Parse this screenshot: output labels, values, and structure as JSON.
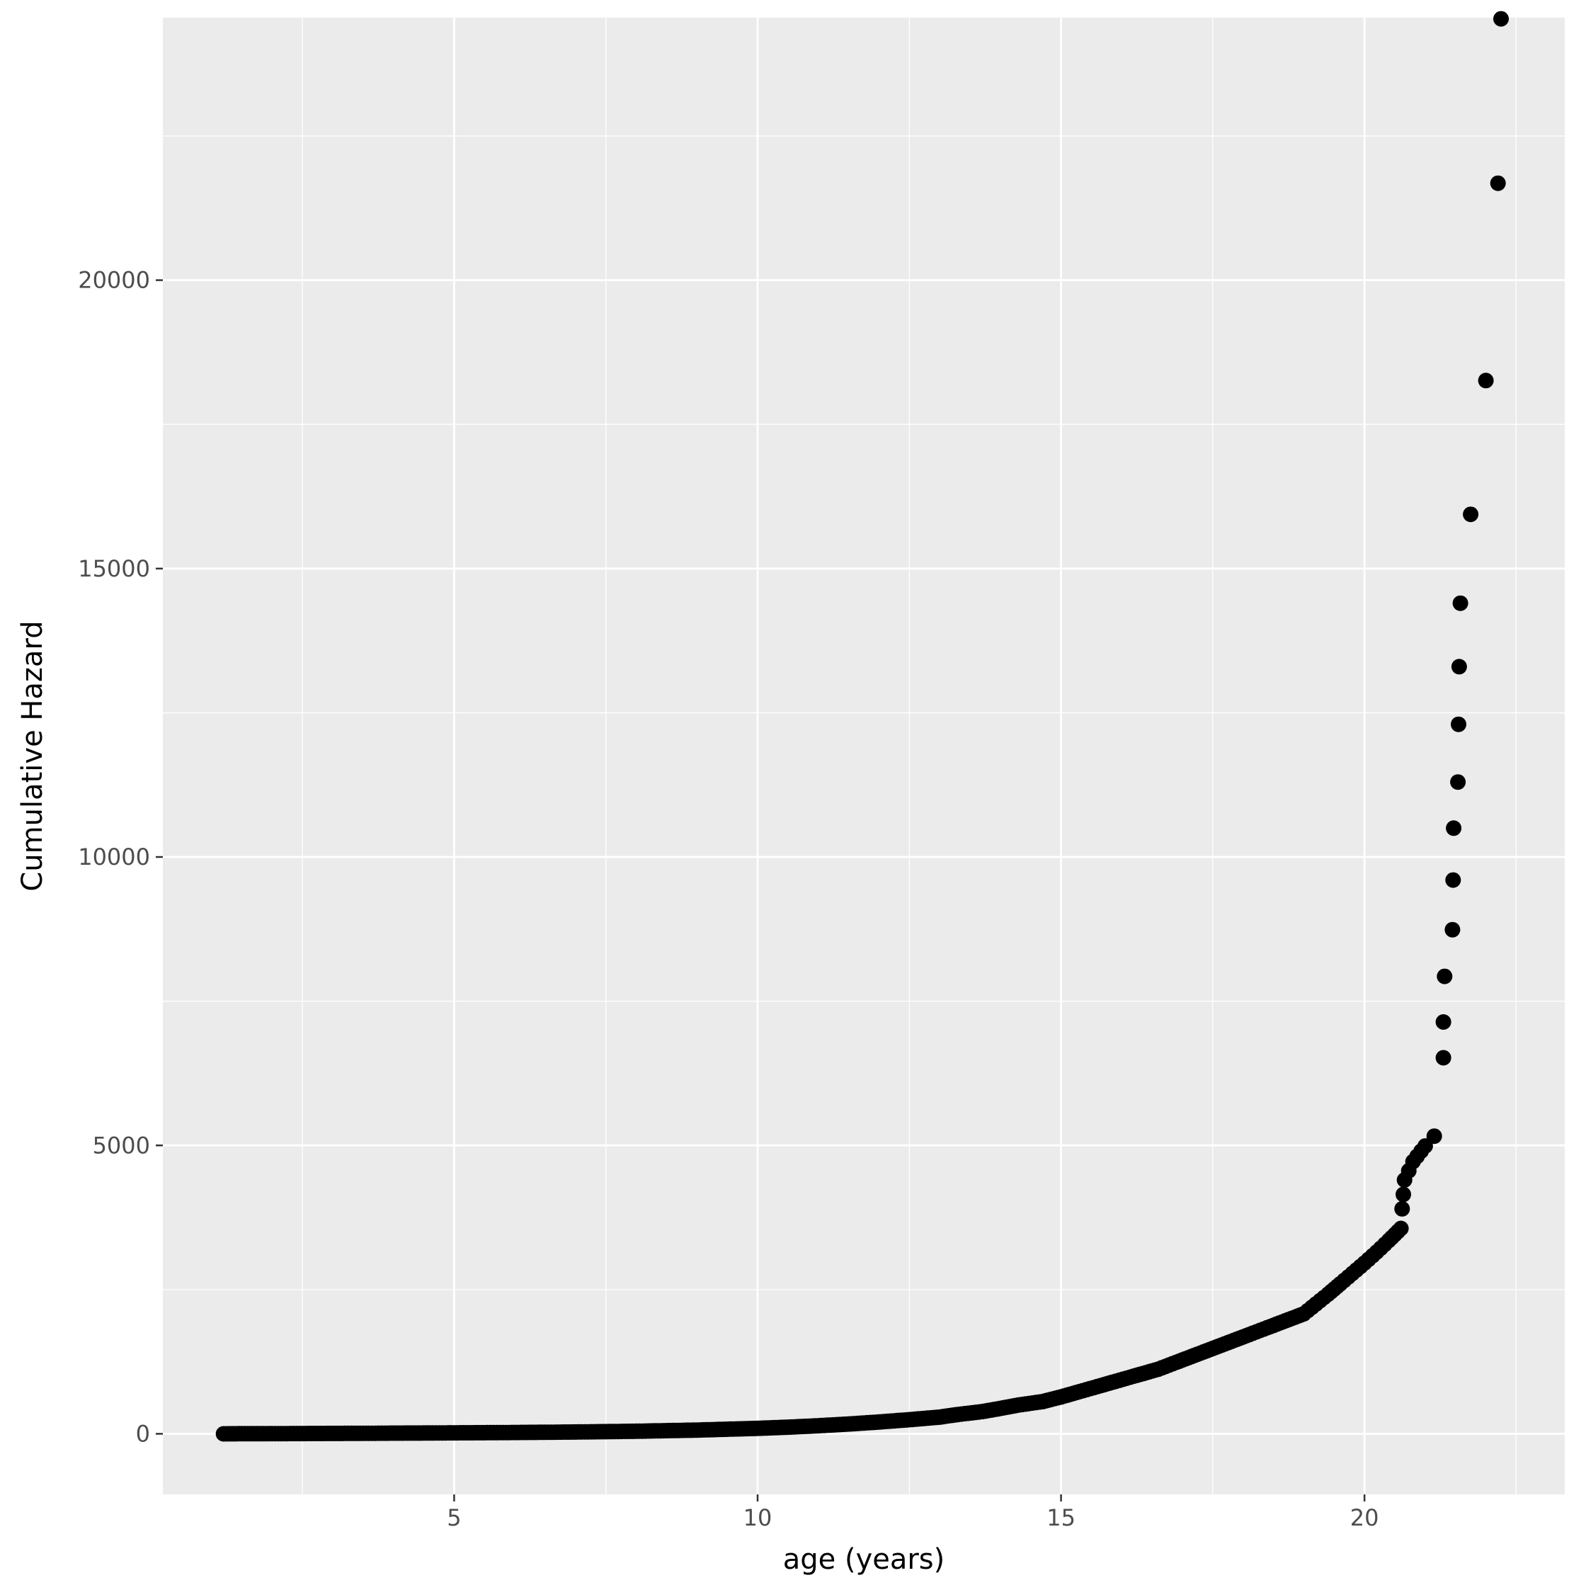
{
  "chart_data": {
    "type": "scatter",
    "title": "",
    "xlabel": "age (years)",
    "ylabel": "Cumulative Hazard",
    "xlim": [
      0.2,
      23.3
    ],
    "ylim": [
      -1050,
      24550
    ],
    "x_ticks": [
      5,
      10,
      15,
      20
    ],
    "x_tick_labels": [
      "5",
      "10",
      "15",
      "20"
    ],
    "x_minor_ticks": [
      2.5,
      7.5,
      12.5,
      17.5,
      22.5
    ],
    "y_ticks": [
      0,
      5000,
      10000,
      15000,
      20000
    ],
    "y_tick_labels": [
      "0",
      "5000",
      "10000",
      "15000",
      "20000"
    ],
    "y_minor_ticks": [
      2500,
      7500,
      12500,
      17500,
      22500
    ],
    "grid": true,
    "legend": "none",
    "colors": {
      "panel_background": "#EBEBEB",
      "grid_line": "#FFFFFF",
      "point": "#000000",
      "tick_label": "#4D4D4D",
      "axis_title": "#000000",
      "tick_mark": "#333333"
    },
    "series": [
      {
        "x": [
          1.2,
          1.5,
          2.0,
          2.5,
          3.0,
          3.5,
          4.0,
          4.5,
          5.0,
          5.5,
          6.0,
          6.5,
          7.0,
          7.5,
          8.0,
          8.5,
          9.0,
          9.5,
          10.0,
          10.5,
          11.0,
          11.5,
          12.0,
          12.5,
          13.0,
          13.3,
          13.7,
          14.0,
          14.3,
          14.7,
          15.0,
          15.3,
          15.6,
          15.9,
          16.2,
          16.6,
          16.9,
          17.2,
          17.5,
          17.8,
          18.1,
          18.4,
          18.7,
          19.0,
          19.2,
          19.4,
          19.6,
          19.8,
          20.0,
          20.2,
          20.4,
          20.6,
          20.62,
          20.64,
          20.66,
          20.8,
          21.0,
          21.15,
          21.3,
          21.3,
          21.32,
          21.45,
          21.46,
          21.47,
          21.54,
          21.55,
          21.56,
          21.58,
          21.75,
          22.0,
          22.2,
          22.25
        ],
        "y": [
          0,
          2,
          3,
          5,
          7,
          9,
          12,
          14,
          17,
          20,
          23,
          27,
          32,
          38,
          45,
          55,
          65,
          80,
          95,
          115,
          140,
          170,
          205,
          245,
          290,
          335,
          385,
          440,
          500,
          560,
          640,
          730,
          820,
          910,
          1000,
          1120,
          1240,
          1360,
          1480,
          1600,
          1720,
          1840,
          1960,
          2080,
          2250,
          2420,
          2600,
          2780,
          2960,
          3150,
          3350,
          3560,
          3900,
          4150,
          4400,
          4720,
          4990,
          5160,
          6520,
          7140,
          7930,
          8740,
          9600,
          10500,
          11300,
          12300,
          13300,
          14400,
          15940,
          18260,
          21680,
          24530
        ]
      }
    ]
  }
}
